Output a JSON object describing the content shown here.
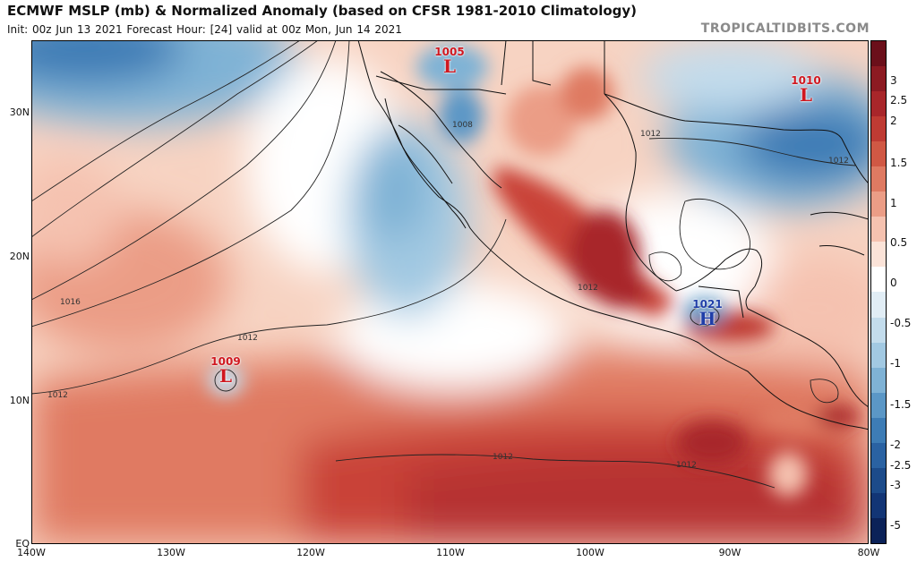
{
  "header": {
    "title": "ECMWF MSLP (mb) & Normalized Anomaly (based on CFSR 1981-2010 Climatology)",
    "subtitle": "Init: 00z Jun 13 2021   Forecast Hour: [24]   valid at 00z Mon, Jun 14 2021",
    "brand": "TROPICALTIDBITS.COM"
  },
  "axes": {
    "lat_labels": [
      "30N",
      "20N",
      "10N",
      "EQ"
    ],
    "lon_labels": [
      "140W",
      "130W",
      "120W",
      "110W",
      "100W",
      "90W",
      "80W"
    ]
  },
  "colorbar": {
    "labels": [
      "3",
      "2.5",
      "2",
      "1.5",
      "1",
      "0.5",
      "0",
      "-0.5",
      "-1",
      "-1.5",
      "-2",
      "-2.5",
      "-3",
      "-5"
    ],
    "colors": [
      "#6b0f1a",
      "#8c1a22",
      "#a8262a",
      "#bf3b33",
      "#d05844",
      "#df7a62",
      "#eb9d86",
      "#f5c2b0",
      "#fbe3d8",
      "#ffffff",
      "#e1edf5",
      "#c3dcec",
      "#a2c9e2",
      "#7fb2d5",
      "#5b97c6",
      "#3d7cb5",
      "#2a62a2",
      "#1c4b8a",
      "#123575",
      "#0b2258"
    ]
  },
  "contour_labels": [
    "1016",
    "1012",
    "1012",
    "1012",
    "1012",
    "1012",
    "1008",
    "1012",
    "1012"
  ],
  "systems": [
    {
      "type": "L",
      "value": "1009"
    },
    {
      "type": "L",
      "value": "1005"
    },
    {
      "type": "L",
      "value": "1010"
    },
    {
      "type": "H",
      "value": "1021"
    }
  ]
}
